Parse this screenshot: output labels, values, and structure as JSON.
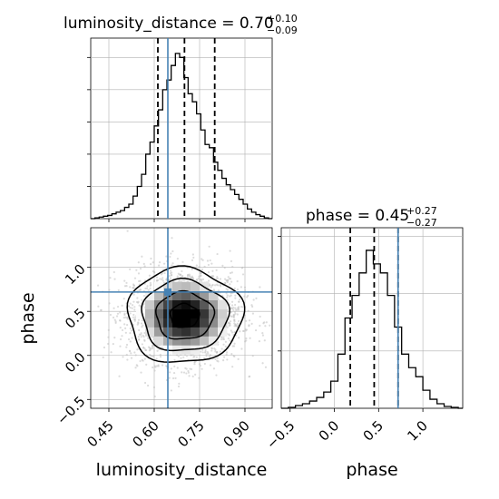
{
  "chart_data": {
    "type": "corner",
    "parameters": [
      "luminosity_distance",
      "phase"
    ],
    "truths": {
      "luminosity_distance": 0.645,
      "phase": 0.72
    },
    "grid": true,
    "panels": {
      "lum_hist": {
        "title_name": "luminosity_distance = 0.70",
        "title_sup": "+0.10",
        "title_sub": "−0.09",
        "xlim": [
          0.39,
          0.99
        ],
        "quantiles": [
          0.612,
          0.7,
          0.8
        ],
        "bins_x": [
          0.39,
          0.404,
          0.418,
          0.432,
          0.446,
          0.46,
          0.474,
          0.488,
          0.502,
          0.516,
          0.53,
          0.544,
          0.558,
          0.572,
          0.586,
          0.6,
          0.614,
          0.628,
          0.642,
          0.656,
          0.67,
          0.684,
          0.698,
          0.712,
          0.726,
          0.74,
          0.754,
          0.768,
          0.782,
          0.796,
          0.81,
          0.824,
          0.838,
          0.852,
          0.866,
          0.88,
          0.894,
          0.908,
          0.922,
          0.936,
          0.95,
          0.964,
          0.978,
          0.99
        ],
        "counts": [
          0,
          1,
          2,
          3,
          4,
          6,
          8,
          10,
          14,
          18,
          28,
          40,
          55,
          80,
          95,
          115,
          135,
          160,
          172,
          190,
          205,
          200,
          175,
          155,
          145,
          130,
          110,
          92,
          88,
          70,
          60,
          50,
          42,
          36,
          30,
          24,
          18,
          12,
          8,
          5,
          3,
          1,
          0
        ],
        "ymax": 215
      },
      "phase_hist": {
        "title_name": "phase = 0.45",
        "title_sup": "+0.27",
        "title_sub": "−0.27",
        "xlim": [
          -0.6,
          1.45
        ],
        "quantiles": [
          0.18,
          0.45,
          0.72
        ],
        "bins_x": [
          -0.6,
          -0.52,
          -0.44,
          -0.36,
          -0.28,
          -0.2,
          -0.12,
          -0.04,
          0.04,
          0.12,
          0.2,
          0.28,
          0.36,
          0.44,
          0.52,
          0.6,
          0.68,
          0.76,
          0.84,
          0.92,
          1.0,
          1.08,
          1.16,
          1.24,
          1.32,
          1.4,
          1.45
        ],
        "counts": [
          0,
          1,
          3,
          5,
          8,
          12,
          18,
          30,
          60,
          100,
          125,
          150,
          175,
          160,
          150,
          125,
          90,
          60,
          45,
          35,
          20,
          10,
          5,
          2,
          1,
          0
        ],
        "ymax": 190
      },
      "joint": {
        "xlim": [
          0.39,
          0.99
        ],
        "ylim": [
          -0.6,
          1.45
        ],
        "xticks": [
          "0.45",
          "0.60",
          "0.75",
          "0.90"
        ],
        "xtick_values": [
          0.45,
          0.6,
          0.75,
          0.9
        ],
        "yticks": [
          "−0.5",
          "0.0",
          "0.5",
          "1.0"
        ],
        "ytick_values": [
          -0.5,
          0.0,
          0.5,
          1.0
        ],
        "center": [
          0.7,
          0.45
        ],
        "sigma": [
          0.095,
          0.27
        ],
        "contour_levels": [
          0.5,
          1.0,
          1.5,
          2.0
        ]
      },
      "phase_xticks": [
        "−0.5",
        "0.0",
        "0.5",
        "1.0"
      ],
      "phase_xtick_values": [
        -0.5,
        0.0,
        0.5,
        1.0
      ]
    },
    "xlabel_left": "luminosity_distance",
    "xlabel_right": "phase",
    "ylabel": "phase"
  },
  "colors": {
    "truth": "#4682b4",
    "hist": "#000000",
    "grid": "#b0b0b0",
    "scatter": "#bfbfbf"
  }
}
